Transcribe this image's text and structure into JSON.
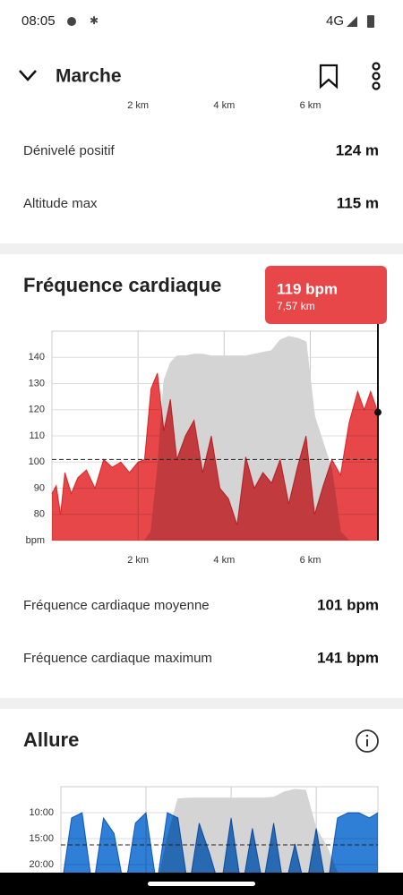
{
  "status_bar": {
    "time": "08:05",
    "network": "4G"
  },
  "header": {
    "title": "Marche"
  },
  "elevation_stats": {
    "xticks": [
      {
        "value": 2,
        "label": "2 km"
      },
      {
        "value": 4,
        "label": "4 km"
      },
      {
        "value": 6,
        "label": "6 km"
      }
    ],
    "rows": [
      {
        "label": "Dénivelé positif",
        "value": "124 m"
      },
      {
        "label": "Altitude max",
        "value": "115 m"
      }
    ]
  },
  "heart_rate": {
    "title": "Fréquence cardiaque",
    "tooltip": {
      "value": "119 bpm",
      "distance": "7,57 km"
    },
    "chart_data": {
      "type": "area",
      "ylabel": "bpm",
      "xlim": [
        0,
        7.57
      ],
      "ylim": [
        70,
        150
      ],
      "y2lim": [
        0,
        118
      ],
      "xticks": [
        {
          "value": 2,
          "label": "2 km"
        },
        {
          "value": 4,
          "label": "4 km"
        },
        {
          "value": 6,
          "label": "6 km"
        }
      ],
      "yticks": [
        80,
        90,
        100,
        110,
        120,
        130,
        140
      ],
      "grid": true,
      "average": 101,
      "cursor": {
        "x": 7.57,
        "value": 119
      },
      "x": [
        0,
        0.1,
        0.2,
        0.3,
        0.45,
        0.6,
        0.8,
        1.0,
        1.2,
        1.4,
        1.6,
        1.8,
        2.0,
        2.15,
        2.3,
        2.45,
        2.6,
        2.75,
        2.9,
        3.1,
        3.3,
        3.5,
        3.7,
        3.9,
        4.1,
        4.3,
        4.5,
        4.7,
        4.9,
        5.1,
        5.3,
        5.5,
        5.7,
        5.9,
        6.1,
        6.3,
        6.5,
        6.7,
        6.9,
        7.1,
        7.25,
        7.4,
        7.57
      ],
      "series": [
        {
          "color": "#d4d4d4",
          "axis": "y2",
          "values": [
            0,
            0,
            0,
            0,
            0,
            0,
            0,
            0,
            0,
            0,
            0,
            0,
            0,
            0,
            5,
            40,
            90,
            100,
            104,
            104,
            105,
            105,
            104,
            104,
            104,
            104,
            104,
            105,
            106,
            107,
            113,
            115,
            114,
            112,
            70,
            55,
            40,
            5,
            0,
            0,
            0,
            0,
            0
          ]
        },
        {
          "color": "#e8474a",
          "values": [
            88,
            91,
            80,
            96,
            88,
            94,
            97,
            90,
            101,
            98,
            100,
            96,
            100,
            101,
            128,
            134,
            112,
            124,
            101,
            110,
            116,
            96,
            110,
            90,
            86,
            76,
            102,
            90,
            96,
            92,
            101,
            84,
            98,
            110,
            80,
            91,
            101,
            95,
            115,
            127,
            120,
            127,
            119
          ]
        }
      ]
    },
    "stats": [
      {
        "label": "Fréquence cardiaque moyenne",
        "value": "101 bpm"
      },
      {
        "label": "Fréquence cardiaque maximum",
        "value": "141 bpm"
      }
    ]
  },
  "pace": {
    "title": "Allure",
    "chart_data": {
      "type": "area",
      "inverted": true,
      "xlim": [
        0,
        7.45
      ],
      "ylim": [
        5,
        25
      ],
      "y2lim": [
        0,
        118
      ],
      "xticks": [
        2,
        4,
        6
      ],
      "yticks": [
        {
          "value": 10,
          "label": "10:00"
        },
        {
          "value": 15,
          "label": "15:00"
        },
        {
          "value": 20,
          "label": "20:00"
        }
      ],
      "grid": true,
      "average": 16.2,
      "x": [
        0,
        0.25,
        0.5,
        0.75,
        1.0,
        1.25,
        1.5,
        1.75,
        2.0,
        2.25,
        2.5,
        2.75,
        3.0,
        3.25,
        3.5,
        3.75,
        4.0,
        4.25,
        4.5,
        4.75,
        5.0,
        5.25,
        5.5,
        5.75,
        6.0,
        6.25,
        6.5,
        6.75,
        7.0,
        7.25,
        7.45
      ],
      "series": [
        {
          "color": "#d4d4d4",
          "axis": "y2",
          "values": [
            0,
            0,
            0,
            0,
            0,
            0,
            0,
            0,
            0,
            0,
            60,
            104,
            105,
            105,
            105,
            105,
            105,
            105,
            105,
            105,
            106,
            112,
            115,
            114,
            70,
            50,
            20,
            0,
            0,
            0,
            0
          ]
        },
        {
          "color": "#2f7fd6",
          "values": [
            25,
            11,
            10,
            25,
            11,
            14,
            25,
            12,
            10,
            24,
            10,
            11,
            25,
            12,
            18,
            25,
            11,
            25,
            13,
            24,
            12,
            25,
            16,
            25,
            13,
            25,
            11,
            10,
            10,
            11,
            10
          ]
        }
      ]
    }
  }
}
